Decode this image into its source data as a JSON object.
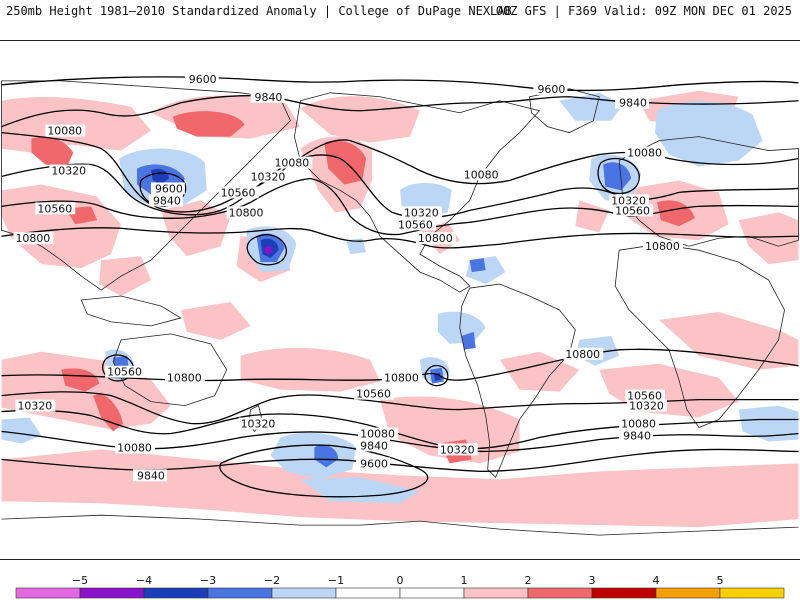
{
  "header": {
    "title": "250mb Height 1981–2010 Standardized Anomaly | College of DuPage NEXLAB",
    "run_info": "00Z GFS | F369 Valid: 09Z MON DEC 01 2025"
  },
  "map": {
    "contour_labels": {
      "9600": "9600",
      "9840": "9840",
      "10080": "10080",
      "10320": "10320",
      "10560": "10560",
      "10800": "10800"
    }
  },
  "colorbar": {
    "ticks": [
      "−5",
      "−4",
      "−3",
      "−2",
      "−1",
      "0",
      "1",
      "2",
      "3",
      "4",
      "5"
    ],
    "colors": [
      "#e468e4",
      "#8a12c9",
      "#1b3fb8",
      "#4a74e2",
      "#bcd6f6",
      "#ffffff",
      "#ffffff",
      "#fbc3c6",
      "#f0686c",
      "#c00000",
      "#f5a000",
      "#ffd000"
    ]
  },
  "colors": {
    "positive_light": "#fbc3c6",
    "positive_mid": "#f0686c",
    "negative_light": "#bcd6f6",
    "negative_mid": "#4a74e2",
    "negative_strong": "#1b3fb8",
    "negative_extreme": "#8a12c9"
  }
}
